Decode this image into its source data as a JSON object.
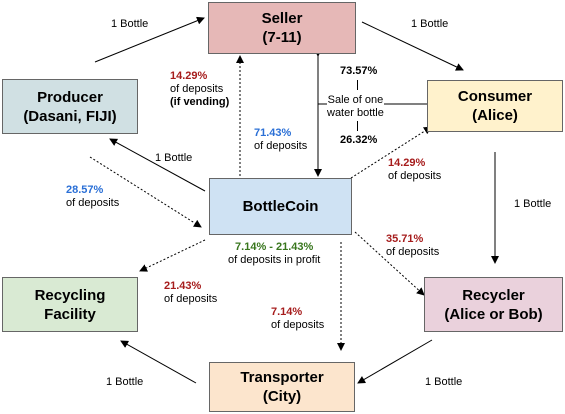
{
  "nodes": {
    "seller": {
      "name": "Seller",
      "sub": "(7-11)",
      "color": "#e6b8b7"
    },
    "producer": {
      "name": "Producer",
      "sub": "(Dasani, FIJI)",
      "color": "#d0e0e3"
    },
    "consumer": {
      "name": "Consumer",
      "sub": "(Alice)",
      "color": "#fff2cc"
    },
    "bottlecoin": {
      "name": "BottleCoin",
      "color": "#cfe2f3"
    },
    "recycling_facility": {
      "name": "Recycling",
      "sub": "Facility",
      "color": "#d9ead3"
    },
    "recycler": {
      "name": "Recycler",
      "sub": "(Alice or Bob)",
      "color": "#ead1dc"
    },
    "transporter": {
      "name": "Transporter",
      "sub": "(City)",
      "color": "#fce5cd"
    }
  },
  "bottle_flows": {
    "producer_to_seller": "1 Bottle",
    "seller_to_consumer": "1 Bottle",
    "consumer_to_recycler": "1 Bottle",
    "recycler_to_transporter": "1 Bottle",
    "transporter_to_facility": "1 Bottle",
    "bottlecoin_to_producer": "1 Bottle"
  },
  "deposit_flows": {
    "seller_vending": {
      "pct": "14.29%",
      "line1": "of deposits",
      "line2": "(if vending)"
    },
    "seller": {
      "pct": "71.43%",
      "line1": "of deposits"
    },
    "producer": {
      "pct": "28.57%",
      "line1": "of deposits"
    },
    "consumer": {
      "pct": "14.29%",
      "line1": "of deposits"
    },
    "recycler": {
      "pct": "35.71%",
      "line1": "of deposits"
    },
    "profit": {
      "pct": "7.14% - 21.43%",
      "line1": "of deposits in profit"
    },
    "facility": {
      "pct": "21.43%",
      "line1": "of deposits"
    },
    "transporter": {
      "pct": "7.14%",
      "line1": "of deposits"
    }
  },
  "sale": {
    "top_pct": "73.57%",
    "label_line1": "Sale of one",
    "label_line2": "water bottle",
    "bottom_pct": "26.32%"
  }
}
